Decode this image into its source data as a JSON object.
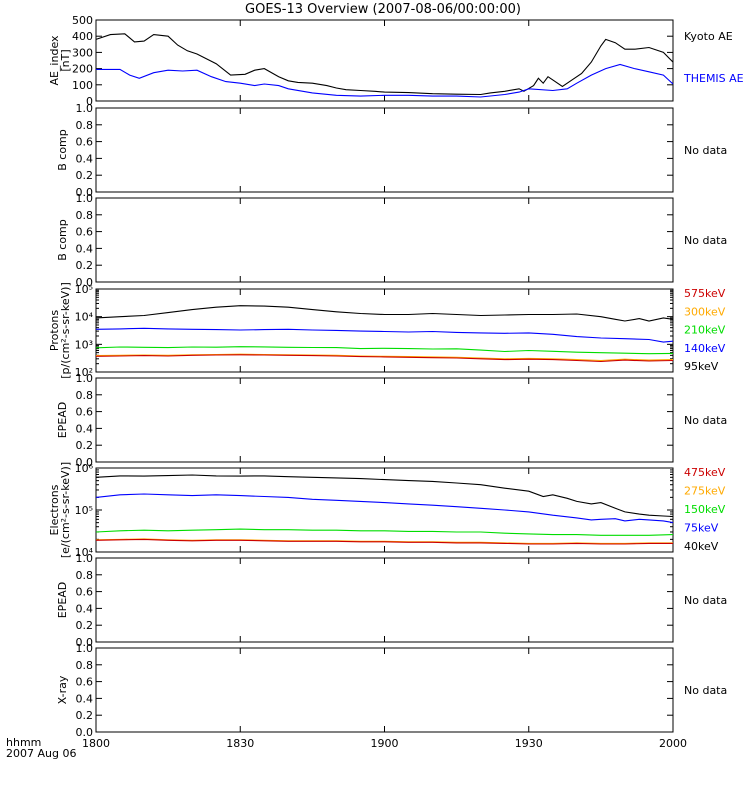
{
  "title": "GOES-13 Overview (2007-08-06/00:00:00)",
  "footer": {
    "time_label": "hhmm",
    "date_label": "2007 Aug 06"
  },
  "x_axis": {
    "tick_labels": [
      "1800",
      "1830",
      "1900",
      "1930",
      "2000"
    ],
    "tick_values": [
      0,
      30,
      60,
      90,
      120
    ],
    "range": [
      0,
      120
    ],
    "units": "minutes after 18:00 UT"
  },
  "chart_data": [
    {
      "type": "line",
      "ylabel_lines": [
        "AE_index",
        "[nT]"
      ],
      "ylim": [
        0,
        500
      ],
      "y_scale": "linear",
      "y_tick_labels": [
        "0",
        "100",
        "200",
        "300",
        "400",
        "500"
      ],
      "y_tick_values": [
        0,
        100,
        200,
        300,
        400,
        500
      ],
      "series": [
        {
          "name": "Kyoto AE",
          "color": "#000000",
          "x": [
            0,
            3,
            6,
            8,
            10,
            12,
            15,
            17,
            19,
            21,
            23,
            25,
            28,
            31,
            33,
            35,
            38,
            40,
            42,
            45,
            48,
            50,
            52,
            55,
            58,
            60,
            65,
            70,
            75,
            80,
            82,
            85,
            88,
            89,
            91,
            92,
            93,
            94,
            95,
            97,
            99,
            101,
            103,
            105,
            106,
            108,
            110,
            112,
            115,
            118,
            120
          ],
          "values": [
            380,
            410,
            415,
            365,
            370,
            410,
            400,
            345,
            310,
            290,
            260,
            230,
            160,
            165,
            190,
            200,
            150,
            125,
            115,
            110,
            95,
            80,
            70,
            65,
            60,
            55,
            52,
            45,
            42,
            40,
            50,
            60,
            75,
            60,
            95,
            140,
            110,
            150,
            130,
            90,
            130,
            170,
            240,
            340,
            380,
            360,
            320,
            320,
            330,
            300,
            240
          ]
        },
        {
          "name": "THEMIS AE",
          "color": "#0000ff",
          "x": [
            0,
            5,
            7,
            9,
            12,
            15,
            18,
            21,
            24,
            27,
            30,
            33,
            35,
            38,
            40,
            45,
            50,
            55,
            60,
            65,
            70,
            75,
            80,
            85,
            88,
            90,
            95,
            98,
            100,
            103,
            106,
            109,
            112,
            115,
            118,
            120
          ],
          "values": [
            195,
            195,
            160,
            140,
            175,
            190,
            185,
            190,
            150,
            120,
            110,
            95,
            105,
            95,
            75,
            50,
            35,
            30,
            35,
            35,
            30,
            30,
            25,
            40,
            55,
            75,
            65,
            75,
            110,
            160,
            200,
            225,
            200,
            180,
            160,
            105
          ]
        }
      ]
    },
    {
      "type": "line",
      "ylabel_lines": [
        "B comp"
      ],
      "ylim": [
        0,
        1
      ],
      "y_scale": "linear",
      "y_tick_labels": [
        "0.0",
        "0.2",
        "0.4",
        "0.6",
        "0.8",
        "1.0"
      ],
      "y_tick_values": [
        0,
        0.2,
        0.4,
        0.6,
        0.8,
        1.0
      ],
      "series": [],
      "status": "No data"
    },
    {
      "type": "line",
      "ylabel_lines": [
        "B comp"
      ],
      "ylim": [
        0,
        1
      ],
      "y_scale": "linear",
      "y_tick_labels": [
        "0.0",
        "0.2",
        "0.4",
        "0.6",
        "0.8",
        "1.0"
      ],
      "y_tick_values": [
        0,
        0.2,
        0.4,
        0.6,
        0.8,
        1.0
      ],
      "series": [],
      "status": "No data"
    },
    {
      "type": "line",
      "ylabel_lines": [
        "Protons",
        "[p/(cm²-s-sr-keV)]"
      ],
      "ylim": [
        100,
        100000
      ],
      "y_scale": "log",
      "y_tick_labels": [
        "10²",
        "10³",
        "10⁴",
        "10⁵"
      ],
      "y_tick_values": [
        100,
        1000,
        10000,
        100000
      ],
      "series": [
        {
          "name": "95keV",
          "color": "#000000",
          "x": [
            0,
            5,
            10,
            15,
            20,
            25,
            30,
            35,
            40,
            45,
            50,
            55,
            60,
            65,
            70,
            75,
            80,
            85,
            90,
            95,
            100,
            105,
            108,
            110,
            113,
            115,
            118,
            120
          ],
          "values": [
            9000,
            10000,
            11000,
            14000,
            18000,
            22000,
            25000,
            24000,
            22000,
            18000,
            15000,
            13000,
            12000,
            12000,
            13000,
            12000,
            11000,
            11500,
            12000,
            12000,
            12500,
            10000,
            8000,
            7000,
            8500,
            7000,
            9000,
            8000
          ]
        },
        {
          "name": "140keV",
          "color": "#0000ff",
          "x": [
            0,
            5,
            10,
            15,
            20,
            25,
            30,
            35,
            40,
            45,
            50,
            55,
            60,
            65,
            70,
            75,
            80,
            85,
            90,
            95,
            100,
            105,
            110,
            115,
            118,
            120
          ],
          "values": [
            3500,
            3600,
            3800,
            3600,
            3500,
            3400,
            3300,
            3400,
            3500,
            3300,
            3200,
            3000,
            2900,
            2800,
            2900,
            2700,
            2600,
            2500,
            2600,
            2300,
            1900,
            1700,
            1600,
            1500,
            1200,
            1300
          ]
        },
        {
          "name": "210keV",
          "color": "#00dd00",
          "x": [
            0,
            5,
            10,
            15,
            20,
            25,
            30,
            35,
            40,
            45,
            50,
            55,
            60,
            65,
            70,
            75,
            80,
            85,
            90,
            95,
            100,
            105,
            110,
            115,
            120
          ],
          "values": [
            750,
            800,
            780,
            760,
            800,
            790,
            820,
            810,
            780,
            770,
            760,
            700,
            720,
            700,
            680,
            690,
            620,
            550,
            600,
            560,
            520,
            500,
            480,
            460,
            470
          ]
        },
        {
          "name": "300keV",
          "color": "#ffaa00",
          "x": [
            0,
            5,
            10,
            15,
            20,
            25,
            30,
            35,
            40,
            45,
            50,
            55,
            60,
            65,
            70,
            75,
            80,
            85,
            90,
            95,
            100,
            105,
            110,
            115,
            120
          ],
          "values": [
            390,
            400,
            410,
            400,
            420,
            430,
            440,
            430,
            420,
            410,
            400,
            380,
            370,
            360,
            350,
            340,
            320,
            300,
            310,
            300,
            280,
            260,
            290,
            270,
            280
          ]
        },
        {
          "name": "575keV",
          "color": "#cc0000",
          "x": [
            0,
            5,
            10,
            15,
            20,
            25,
            30,
            35,
            40,
            45,
            50,
            55,
            60,
            65,
            70,
            75,
            80,
            85,
            90,
            95,
            100,
            105,
            110,
            115,
            120
          ],
          "values": [
            370,
            380,
            390,
            380,
            400,
            410,
            420,
            410,
            400,
            390,
            380,
            360,
            350,
            340,
            330,
            320,
            300,
            280,
            290,
            280,
            260,
            240,
            270,
            250,
            260
          ]
        }
      ],
      "legend_order": [
        "575keV",
        "300keV",
        "210keV",
        "140keV",
        "95keV"
      ]
    },
    {
      "type": "line",
      "ylabel_lines": [
        "EPEAD"
      ],
      "ylim": [
        0,
        1
      ],
      "y_scale": "linear",
      "y_tick_labels": [
        "0.0",
        "0.2",
        "0.4",
        "0.6",
        "0.8",
        "1.0"
      ],
      "y_tick_values": [
        0,
        0.2,
        0.4,
        0.6,
        0.8,
        1.0
      ],
      "series": [],
      "status": "No data"
    },
    {
      "type": "line",
      "ylabel_lines": [
        "Electrons",
        "[e/(cm²-s-sr-keV)]"
      ],
      "ylim": [
        10000,
        1000000
      ],
      "y_scale": "log",
      "y_tick_labels": [
        "10⁴",
        "10⁵",
        "10⁶"
      ],
      "y_tick_values": [
        10000,
        100000,
        1000000
      ],
      "series": [
        {
          "name": "40keV",
          "color": "#000000",
          "x": [
            0,
            5,
            10,
            15,
            20,
            25,
            30,
            35,
            40,
            45,
            50,
            55,
            60,
            65,
            70,
            75,
            80,
            85,
            90,
            93,
            95,
            98,
            100,
            103,
            105,
            108,
            110,
            113,
            115,
            118,
            120
          ],
          "values": [
            600000,
            650000,
            640000,
            660000,
            680000,
            650000,
            640000,
            650000,
            620000,
            600000,
            580000,
            560000,
            530000,
            500000,
            480000,
            440000,
            400000,
            330000,
            280000,
            210000,
            230000,
            190000,
            160000,
            140000,
            150000,
            110000,
            90000,
            80000,
            75000,
            72000,
            70000
          ]
        },
        {
          "name": "75keV",
          "color": "#0000ff",
          "x": [
            0,
            5,
            10,
            15,
            20,
            25,
            30,
            35,
            40,
            45,
            50,
            55,
            60,
            65,
            70,
            75,
            80,
            85,
            90,
            95,
            100,
            103,
            105,
            108,
            110,
            113,
            115,
            118,
            120
          ],
          "values": [
            200000,
            230000,
            240000,
            230000,
            220000,
            230000,
            220000,
            210000,
            200000,
            180000,
            170000,
            160000,
            150000,
            140000,
            130000,
            120000,
            110000,
            100000,
            90000,
            75000,
            65000,
            58000,
            60000,
            62000,
            55000,
            60000,
            58000,
            55000,
            50000
          ]
        },
        {
          "name": "150keV",
          "color": "#00dd00",
          "x": [
            0,
            5,
            10,
            15,
            20,
            25,
            30,
            35,
            40,
            45,
            50,
            55,
            60,
            65,
            70,
            75,
            80,
            85,
            90,
            95,
            100,
            105,
            110,
            115,
            120
          ],
          "values": [
            30000,
            32000,
            33000,
            32000,
            33000,
            34000,
            35000,
            34000,
            34000,
            33000,
            33000,
            32000,
            32000,
            31000,
            31000,
            30000,
            30000,
            28000,
            27000,
            26000,
            26000,
            25000,
            25000,
            25000,
            26000
          ]
        },
        {
          "name": "275keV",
          "color": "#ffaa00",
          "x": [
            0,
            5,
            10,
            15,
            20,
            25,
            30,
            35,
            40,
            45,
            50,
            55,
            60,
            65,
            70,
            75,
            80,
            85,
            90,
            95,
            100,
            105,
            110,
            115,
            120
          ],
          "values": [
            19500,
            20000,
            20500,
            19500,
            19000,
            19500,
            19500,
            19000,
            18500,
            18500,
            18500,
            18000,
            18000,
            17500,
            17500,
            17000,
            17000,
            16500,
            16000,
            16000,
            16500,
            16000,
            16000,
            16500,
            16500
          ]
        },
        {
          "name": "475keV",
          "color": "#cc0000",
          "x": [
            0,
            5,
            10,
            15,
            20,
            25,
            30,
            35,
            40,
            45,
            50,
            55,
            60,
            65,
            70,
            75,
            80,
            85,
            90,
            95,
            100,
            105,
            110,
            115,
            120
          ],
          "values": [
            19000,
            19500,
            20000,
            19000,
            18500,
            19000,
            19000,
            18500,
            18000,
            18000,
            18000,
            17500,
            17500,
            17000,
            17000,
            16500,
            16500,
            16000,
            15500,
            15500,
            16000,
            15500,
            15500,
            16000,
            16000
          ]
        }
      ],
      "legend_order": [
        "475keV",
        "275keV",
        "150keV",
        "75keV",
        "40keV"
      ]
    },
    {
      "type": "line",
      "ylabel_lines": [
        "EPEAD"
      ],
      "ylim": [
        0,
        1
      ],
      "y_scale": "linear",
      "y_tick_labels": [
        "0.0",
        "0.2",
        "0.4",
        "0.6",
        "0.8",
        "1.0"
      ],
      "y_tick_values": [
        0,
        0.2,
        0.4,
        0.6,
        0.8,
        1.0
      ],
      "series": [],
      "status": "No data"
    },
    {
      "type": "line",
      "ylabel_lines": [
        "X-ray"
      ],
      "ylim": [
        0,
        1
      ],
      "y_scale": "linear",
      "y_tick_labels": [
        "0.0",
        "0.2",
        "0.4",
        "0.6",
        "0.8",
        "1.0"
      ],
      "y_tick_values": [
        0,
        0.2,
        0.4,
        0.6,
        0.8,
        1.0
      ],
      "series": [],
      "status": "No data"
    }
  ]
}
